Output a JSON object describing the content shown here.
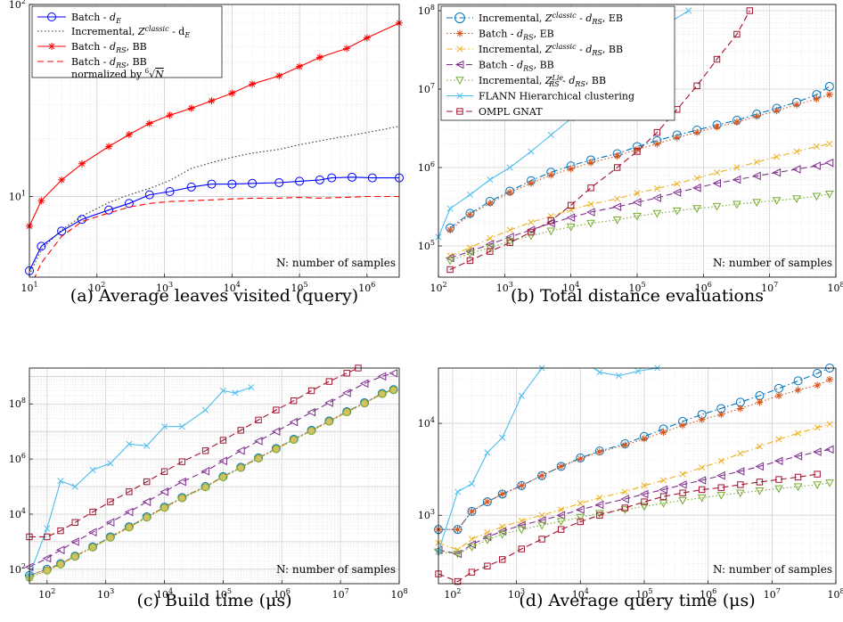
{
  "chart_data": [
    {
      "id": "a",
      "type": "line",
      "caption": "(a) Average leaves visited (query)",
      "xscale": "log",
      "yscale": "log",
      "xlim": [
        10,
        3000000
      ],
      "ylim": [
        3.8,
        100
      ],
      "xticks": [
        10,
        100,
        1000,
        10000,
        100000,
        1000000
      ],
      "xtick_labels": [
        "10^1",
        "10^2",
        "10^3",
        "10^4",
        "10^5",
        "10^6"
      ],
      "yticks": [
        10,
        100
      ],
      "ytick_labels": [
        "10^1",
        "10^2"
      ],
      "grid": true,
      "legend_position": "top-left",
      "annotation": "N: number of samples",
      "series": [
        {
          "name": "Batch - d_E",
          "label_main": "Batch - ",
          "label_sym": "d",
          "label_sub": "E",
          "color": "#0000ff",
          "dash": "solid",
          "marker": "circle",
          "x": [
            10,
            15,
            30,
            60,
            150,
            300,
            600,
            1200,
            2500,
            5000,
            10000,
            20000,
            50000,
            100000,
            200000,
            300000,
            600000,
            1200000,
            3000000
          ],
          "y": [
            4.1,
            5.5,
            6.6,
            7.6,
            8.5,
            9.2,
            10.2,
            10.6,
            11.2,
            11.6,
            11.6,
            11.7,
            11.8,
            12.0,
            12.2,
            12.5,
            12.6,
            12.5,
            12.5
          ]
        },
        {
          "name": "Incremental, Z^classic - d_E",
          "label_main": "Incremental, ",
          "label_sym": "Z",
          "label_sup": "classic",
          "label_tail": " - d",
          "label_sub": "E",
          "color": "#333333",
          "dash": "dotted",
          "marker": "none",
          "x": [
            10,
            15,
            30,
            60,
            150,
            300,
            600,
            1200,
            2500,
            5000,
            10000,
            20000,
            50000,
            100000,
            300000,
            1000000,
            3000000
          ],
          "y": [
            3.9,
            5.3,
            6.7,
            7.9,
            9.3,
            10.2,
            11.0,
            12.1,
            14.0,
            15.0,
            16.0,
            16.8,
            17.6,
            18.6,
            20.0,
            21.5,
            23.2
          ]
        },
        {
          "name": "Batch - d_RS, BB",
          "label_main": "Batch - ",
          "label_sym": "d",
          "label_sub": "RS",
          "label_tail": ", BB",
          "color": "#ff0000",
          "dash": "solid",
          "marker": "star",
          "x": [
            10,
            15,
            30,
            60,
            150,
            300,
            600,
            1200,
            2500,
            5000,
            10000,
            20000,
            50000,
            100000,
            200000,
            500000,
            1000000,
            3000000
          ],
          "y": [
            7.0,
            9.5,
            12.2,
            14.8,
            18.2,
            21.0,
            24.0,
            26.5,
            28.8,
            31.5,
            34.5,
            38.5,
            42.5,
            47.5,
            53.0,
            59.0,
            67.0,
            80.0
          ]
        },
        {
          "name": "Batch - d_RS, BB normalized by 6th root of N",
          "label_main": "Batch - ",
          "label_sym": "d",
          "label_sub": "RS",
          "label_tail": ", BB",
          "label_line2": "normalized by",
          "color": "#ff0000",
          "dash": "dashed",
          "marker": "none",
          "x": [
            10,
            15,
            30,
            60,
            150,
            300,
            600,
            1200,
            2500,
            5000,
            10000,
            20000,
            50000,
            100000,
            200000,
            500000,
            1000000,
            3000000
          ],
          "y": [
            3.3,
            4.5,
            6.2,
            7.4,
            8.2,
            8.8,
            9.2,
            9.4,
            9.5,
            9.6,
            9.7,
            9.8,
            9.8,
            9.9,
            9.8,
            9.9,
            10.0,
            10.0
          ]
        }
      ]
    },
    {
      "id": "b",
      "type": "line",
      "caption": "(b) Total distance evaluations",
      "xscale": "log",
      "yscale": "log",
      "xlim": [
        100,
        100000000
      ],
      "ylim": [
        40000,
        120000000
      ],
      "xticks": [
        100,
        1000,
        10000,
        100000,
        1000000,
        10000000,
        100000000
      ],
      "xtick_labels": [
        "10^2",
        "10^3",
        "10^4",
        "10^5",
        "10^6",
        "10^7",
        "10^8"
      ],
      "yticks": [
        100000,
        1000000,
        10000000,
        100000000
      ],
      "ytick_labels": [
        "10^5",
        "10^6",
        "10^7",
        "10^8"
      ],
      "grid": true,
      "legend_position": "top-left",
      "annotation": "N: number of samples",
      "series": [
        {
          "name": "Incremental, Z^classic - d_RS, EB",
          "color": "#0072bd",
          "dash": "dashdot",
          "marker": "circle"
        },
        {
          "name": "Batch - d_RS, EB",
          "color": "#d95319",
          "dash": "dotted",
          "marker": "star"
        },
        {
          "name": "Incremental, Z^classic - d_RS, BB",
          "color": "#edb120",
          "dash": "dashdot",
          "marker": "x"
        },
        {
          "name": "Batch - d_RS, BB",
          "color": "#7e2f8e",
          "dash": "dashed",
          "marker": "triangle-left"
        },
        {
          "name": "Incremental, Z^Lie_RS - d_RS, BB",
          "color": "#77ac30",
          "dash": "dotted",
          "marker": "triangle-down"
        },
        {
          "name": "FLANN Hierarchical clustering",
          "color": "#4dbeee",
          "dash": "solid",
          "marker": "x"
        },
        {
          "name": "OMPL GNAT",
          "color": "#a2142f",
          "dash": "dashed",
          "marker": "square"
        }
      ],
      "series_values": {
        "x": [
          150,
          300,
          600,
          1200,
          2500,
          5000,
          10000,
          20000,
          50000,
          100000,
          200000,
          400000,
          800000,
          1600000,
          3200000,
          6400000,
          12800000,
          25600000,
          51200000,
          80000000
        ],
        "s0": [
          170000,
          260000,
          370000,
          500000,
          680000,
          870000,
          1050000,
          1250000,
          1500000,
          1850000,
          2200000,
          2600000,
          3000000,
          3500000,
          4000000,
          4800000,
          5700000,
          6800000,
          8500000,
          10800000
        ],
        "s1": [
          160000,
          250000,
          350000,
          480000,
          630000,
          800000,
          960000,
          1150000,
          1400000,
          1700000,
          2000000,
          2400000,
          2800000,
          3300000,
          3800000,
          4500000,
          5300000,
          6300000,
          7500000,
          8500000
        ],
        "s2": [
          75000,
          95000,
          125000,
          160000,
          200000,
          240000,
          290000,
          340000,
          400000,
          470000,
          540000,
          620000,
          730000,
          860000,
          1000000,
          1170000,
          1370000,
          1600000,
          1850000,
          2000000
        ],
        "s3": [
          70000,
          85000,
          105000,
          130000,
          160000,
          195000,
          230000,
          270000,
          315000,
          360000,
          410000,
          480000,
          550000,
          630000,
          700000,
          780000,
          860000,
          950000,
          1050000,
          1150000
        ],
        "s4": [
          65000,
          80000,
          95000,
          115000,
          135000,
          155000,
          175000,
          195000,
          215000,
          240000,
          260000,
          280000,
          300000,
          320000,
          340000,
          360000,
          380000,
          400000,
          430000,
          460000
        ],
        "s5_x": [
          100,
          150,
          300,
          600,
          1200,
          2500,
          5000,
          10000,
          20000,
          50000,
          100000,
          160000,
          300000,
          600000
        ],
        "s5": [
          130000,
          300000,
          450000,
          700000,
          1000000,
          1600000,
          2600000,
          4200000,
          7500000,
          16000000,
          40000000,
          65000000,
          70000000,
          100000000
        ],
        "s6_x": [
          150,
          300,
          600,
          1200,
          2500,
          5000,
          10000,
          20000,
          50000,
          100000,
          200000,
          400000,
          800000,
          1600000,
          3200000,
          5000000
        ],
        "s6": [
          50000,
          65000,
          85000,
          110000,
          150000,
          210000,
          330000,
          550000,
          1000000,
          1600000,
          2800000,
          5500000,
          11000000,
          24000000,
          50000000,
          100000000
        ]
      }
    },
    {
      "id": "c",
      "type": "line",
      "caption": "(c) Build time (μs)",
      "xscale": "log",
      "yscale": "log",
      "xlim": [
        50,
        100000000
      ],
      "ylim": [
        30,
        2000000000
      ],
      "xticks": [
        100,
        1000,
        10000,
        100000,
        1000000,
        10000000,
        100000000
      ],
      "xtick_labels": [
        "10^2",
        "10^3",
        "10^4",
        "10^5",
        "10^6",
        "10^7",
        "10^8"
      ],
      "yticks": [
        100,
        10000,
        1000000,
        100000000
      ],
      "ytick_labels": [
        "10^2",
        "10^4",
        "10^6",
        "10^8"
      ],
      "grid": true,
      "annotation": "N: number of samples",
      "series_values": {
        "x": [
          50,
          100,
          170,
          300,
          600,
          1200,
          2500,
          5000,
          10000,
          20000,
          50000,
          100000,
          200000,
          400000,
          800000,
          1600000,
          3200000,
          6400000,
          12800000,
          25600000,
          51200000,
          80000000
        ],
        "s0": [
          60,
          100,
          160,
          300,
          650,
          1500,
          3500,
          8000,
          18000,
          40000,
          100000,
          230000,
          500000,
          1100000,
          2400000,
          5200000,
          11000000,
          24000000,
          52000000,
          110000000,
          240000000,
          330000000
        ],
        "s1": [
          60,
          100,
          160,
          300,
          650,
          1500,
          3500,
          8000,
          18000,
          40000,
          100000,
          230000,
          500000,
          1100000,
          2400000,
          5200000,
          11000000,
          24000000,
          52000000,
          110000000,
          240000000,
          330000000
        ],
        "s2": [
          50,
          90,
          150,
          290,
          620,
          1400,
          3300,
          7500,
          17000,
          38000,
          95000,
          220000,
          480000,
          1050000,
          2300000,
          5000000,
          10500000,
          23000000,
          50000000,
          105000000,
          230000000,
          320000000
        ],
        "s3": [
          120,
          250,
          500,
          1000,
          2200,
          5000,
          12000,
          28000,
          65000,
          150000,
          360000,
          850000,
          2000000,
          4500000,
          10000000,
          22000000,
          50000000,
          110000000,
          250000000,
          550000000,
          1000000000,
          1300000000
        ],
        "s4": [
          50,
          90,
          150,
          290,
          620,
          1400,
          3300,
          7500,
          17000,
          38000,
          95000,
          220000,
          480000,
          1050000,
          2300000,
          5000000,
          10500000,
          23000000,
          50000000,
          105000000,
          230000000,
          320000000
        ],
        "s5_x": [
          50,
          100,
          170,
          300,
          600,
          1200,
          2500,
          5000,
          10000,
          20000,
          50000,
          100000,
          160000,
          300000
        ],
        "s5": [
          60,
          3000,
          160000,
          100000,
          400000,
          700000,
          3500000,
          3000000,
          15000000,
          15000000,
          60000000,
          300000000,
          250000000,
          400000000
        ],
        "s6_x": [
          50,
          100,
          170,
          300,
          600,
          1200,
          2500,
          5000,
          10000,
          20000,
          50000,
          100000,
          200000,
          400000,
          800000,
          1600000,
          3200000,
          6400000,
          12800000,
          20000000
        ],
        "s6": [
          1500,
          1500,
          2500,
          5000,
          12000,
          28000,
          65000,
          150000,
          350000,
          800000,
          2000000,
          4800000,
          11000000,
          26000000,
          60000000,
          130000000,
          300000000,
          650000000,
          1300000000,
          2000000000
        ]
      }
    },
    {
      "id": "d",
      "type": "line",
      "caption": "(d) Average query time (μs)",
      "xscale": "log",
      "yscale": "log",
      "xlim": [
        60,
        100000000
      ],
      "ylim": [
        180,
        40000
      ],
      "xticks": [
        100,
        1000,
        10000,
        100000,
        1000000,
        10000000,
        100000000
      ],
      "xtick_labels": [
        "10^2",
        "10^3",
        "10^4",
        "10^5",
        "10^6",
        "10^7",
        "10^8"
      ],
      "yticks": [
        1000,
        10000
      ],
      "ytick_labels": [
        "10^3",
        "10^4"
      ],
      "grid": true,
      "annotation": "N: number of samples",
      "series_values": {
        "x": [
          60,
          120,
          200,
          350,
          600,
          1200,
          2500,
          5000,
          10000,
          20000,
          50000,
          100000,
          200000,
          400000,
          800000,
          1600000,
          3200000,
          6400000,
          12800000,
          25600000,
          51200000,
          80000000
        ],
        "s0": [
          700,
          700,
          1100,
          1400,
          1700,
          2100,
          2700,
          3400,
          4200,
          5000,
          6000,
          7200,
          8700,
          10500,
          12500,
          14500,
          17000,
          20000,
          24000,
          29000,
          35000,
          40000
        ],
        "s1": [
          700,
          700,
          1100,
          1400,
          1700,
          2100,
          2700,
          3400,
          4100,
          4900,
          5800,
          6800,
          8000,
          9500,
          11000,
          12500,
          14500,
          17000,
          20000,
          23000,
          26000,
          30000
        ],
        "s2": [
          500,
          420,
          550,
          650,
          750,
          870,
          1000,
          1150,
          1350,
          1550,
          1800,
          2100,
          2400,
          2800,
          3300,
          3900,
          4700,
          5600,
          6700,
          7800,
          9000,
          9800
        ],
        "s3": [
          420,
          380,
          480,
          580,
          670,
          780,
          880,
          1000,
          1150,
          1300,
          1500,
          1700,
          1900,
          2150,
          2400,
          2700,
          3000,
          3400,
          3900,
          4400,
          4900,
          5200
        ],
        "s4": [
          400,
          380,
          450,
          540,
          620,
          700,
          780,
          860,
          950,
          1050,
          1150,
          1250,
          1350,
          1450,
          1550,
          1650,
          1750,
          1850,
          1950,
          2050,
          2150,
          2250
        ],
        "s5_x": [
          60,
          120,
          200,
          350,
          600,
          1200,
          2500,
          5000,
          10000,
          20000,
          40000,
          80000,
          160000,
          300000
        ],
        "s5": [
          400,
          1800,
          2200,
          4800,
          7000,
          20000,
          40000,
          60000,
          50000,
          36000,
          33000,
          37000,
          40000,
          42000
        ],
        "s6_x": [
          60,
          120,
          200,
          350,
          600,
          1200,
          2500,
          5000,
          10000,
          20000,
          50000,
          100000,
          200000,
          400000,
          800000,
          1600000,
          3200000,
          6400000,
          12800000,
          25600000,
          51200000
        ],
        "s6": [
          230,
          190,
          240,
          280,
          330,
          430,
          550,
          700,
          850,
          1000,
          1200,
          1400,
          1600,
          1750,
          1900,
          2000,
          2150,
          2300,
          2450,
          2600,
          2800
        ]
      }
    }
  ]
}
